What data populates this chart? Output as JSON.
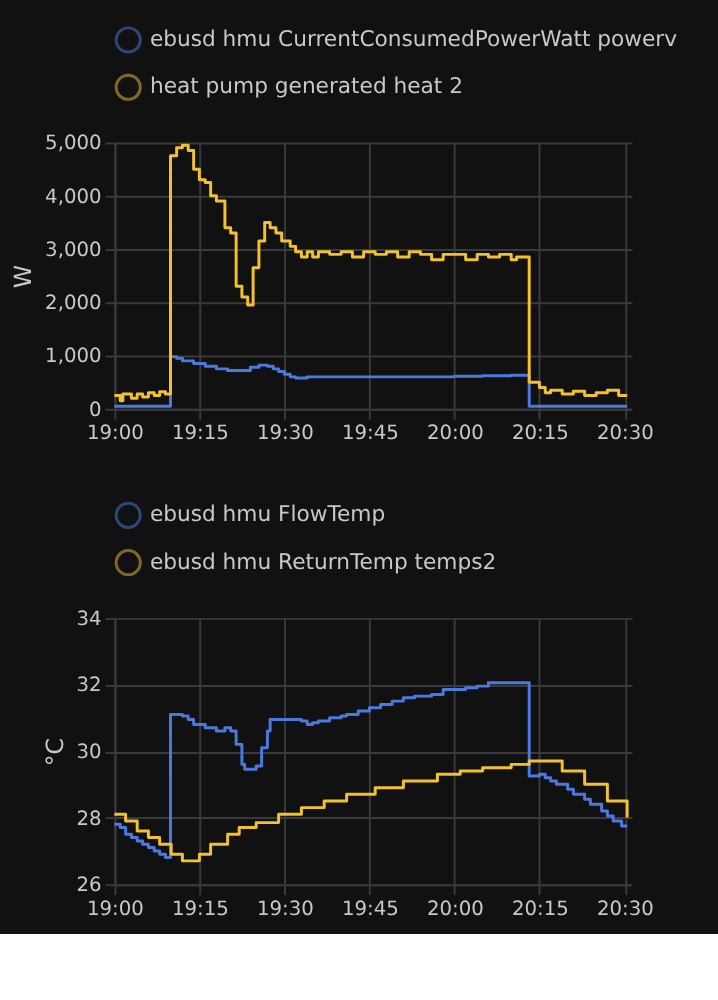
{
  "chart_data": [
    {
      "type": "step",
      "ylabel": "W",
      "xlim": [
        19,
        20.52
      ],
      "ylim": [
        0,
        5000
      ],
      "xticks": [
        {
          "value": 19,
          "label": "19:00"
        },
        {
          "value": 19.25,
          "label": "19:15"
        },
        {
          "value": 19.5,
          "label": "19:30"
        },
        {
          "value": 19.75,
          "label": "19:45"
        },
        {
          "value": 20,
          "label": "20:00"
        },
        {
          "value": 20.25,
          "label": "20:15"
        },
        {
          "value": 20.5,
          "label": "20:30"
        }
      ],
      "yticks": [
        0,
        {
          "value": 1000,
          "label": "1,000"
        },
        {
          "value": 2000,
          "label": "2,000"
        },
        {
          "value": 3000,
          "label": "3,000"
        },
        {
          "value": 4000,
          "label": "4,000"
        },
        {
          "value": 5000,
          "label": "5,000"
        }
      ],
      "grid": true,
      "legend": "top",
      "marker": "none",
      "series": [
        {
          "name": "ebusd hmu CurrentConsumedPowerWatt powerv",
          "color": "#4a7ae0",
          "x": [
            19,
            19.165,
            19.183,
            19.2,
            19.233,
            19.267,
            19.3,
            19.333,
            19.367,
            19.4,
            19.425,
            19.45,
            19.467,
            19.483,
            19.5,
            19.517,
            19.533,
            19.567,
            19.667,
            19.833,
            20.0,
            20.083,
            20.167,
            20.22,
            20.508
          ],
          "values": [
            50,
            980,
            950,
            900,
            850,
            800,
            750,
            720,
            720,
            780,
            820,
            800,
            750,
            700,
            650,
            600,
            580,
            600,
            600,
            600,
            610,
            620,
            630,
            50,
            50
          ]
        },
        {
          "name": "heat pump generated heat 2",
          "color": "#f2c12e",
          "x": [
            19,
            19.017,
            19.025,
            19.05,
            19.067,
            19.083,
            19.1,
            19.117,
            19.133,
            19.15,
            19.165,
            19.183,
            19.2,
            19.217,
            19.233,
            19.25,
            19.267,
            19.283,
            19.3,
            19.325,
            19.342,
            19.358,
            19.375,
            19.392,
            19.408,
            19.425,
            19.442,
            19.458,
            19.475,
            19.492,
            19.517,
            19.533,
            19.55,
            19.567,
            19.583,
            19.6,
            19.633,
            19.667,
            19.7,
            19.733,
            19.767,
            19.8,
            19.833,
            19.867,
            19.9,
            19.933,
            19.967,
            20.0,
            20.033,
            20.067,
            20.1,
            20.133,
            20.167,
            20.183,
            20.22,
            20.25,
            20.267,
            20.283,
            20.317,
            20.35,
            20.383,
            20.417,
            20.45,
            20.483,
            20.508
          ],
          "values": [
            250,
            150,
            280,
            200,
            280,
            220,
            300,
            250,
            320,
            280,
            4750,
            4900,
            4950,
            4850,
            4500,
            4300,
            4250,
            4000,
            3900,
            3400,
            3300,
            2300,
            2100,
            1950,
            2650,
            3150,
            3500,
            3400,
            3300,
            3150,
            3050,
            2950,
            2850,
            2950,
            2850,
            2950,
            2900,
            2950,
            2850,
            2950,
            2900,
            2950,
            2850,
            2950,
            2900,
            2800,
            2900,
            2900,
            2800,
            2900,
            2850,
            2900,
            2800,
            2850,
            500,
            400,
            300,
            350,
            280,
            330,
            250,
            300,
            350,
            250,
            250
          ]
        }
      ]
    },
    {
      "type": "step",
      "ylabel": "°C",
      "xlim": [
        19,
        20.52
      ],
      "ylim": [
        26,
        34
      ],
      "xticks": [
        {
          "value": 19,
          "label": "19:00"
        },
        {
          "value": 19.25,
          "label": "19:15"
        },
        {
          "value": 19.5,
          "label": "19:30"
        },
        {
          "value": 19.75,
          "label": "19:45"
        },
        {
          "value": 20,
          "label": "20:00"
        },
        {
          "value": 20.25,
          "label": "20:15"
        },
        {
          "value": 20.5,
          "label": "20:30"
        }
      ],
      "yticks": [
        26,
        28,
        30,
        32,
        34
      ],
      "grid": true,
      "legend": "top",
      "marker": "none",
      "series": [
        {
          "name": "ebusd hmu FlowTemp",
          "color": "#4a7ae0",
          "x": [
            19,
            19.017,
            19.033,
            19.05,
            19.067,
            19.083,
            19.1,
            19.117,
            19.133,
            19.15,
            19.165,
            19.2,
            19.217,
            19.233,
            19.267,
            19.3,
            19.325,
            19.342,
            19.358,
            19.375,
            19.383,
            19.417,
            19.433,
            19.45,
            19.458,
            19.55,
            19.567,
            19.583,
            19.6,
            19.633,
            19.667,
            19.683,
            19.717,
            19.75,
            19.783,
            19.817,
            19.85,
            19.883,
            19.933,
            19.967,
            20.033,
            20.067,
            20.1,
            20.22,
            20.25,
            20.267,
            20.283,
            20.3,
            20.333,
            20.35,
            20.383,
            20.4,
            20.433,
            20.45,
            20.467,
            20.492,
            20.508
          ],
          "values": [
            27.8,
            27.7,
            27.5,
            27.4,
            27.3,
            27.2,
            27.1,
            27.0,
            26.9,
            26.8,
            31.1,
            31.05,
            30.95,
            30.8,
            30.7,
            30.6,
            30.7,
            30.6,
            30.2,
            29.6,
            29.45,
            29.55,
            30.1,
            30.6,
            30.95,
            30.9,
            30.8,
            30.85,
            30.9,
            31.0,
            31.05,
            31.1,
            31.2,
            31.3,
            31.4,
            31.5,
            31.6,
            31.65,
            31.7,
            31.85,
            31.9,
            31.95,
            32.05,
            29.25,
            29.3,
            29.2,
            29.1,
            29.0,
            28.85,
            28.7,
            28.55,
            28.4,
            28.2,
            28.05,
            27.9,
            27.75,
            27.75
          ]
        },
        {
          "name": "ebusd hmu ReturnTemp temps2",
          "color": "#f2c12e",
          "x": [
            19,
            19.033,
            19.067,
            19.1,
            19.133,
            19.167,
            19.2,
            19.25,
            19.283,
            19.333,
            19.367,
            19.417,
            19.483,
            19.55,
            19.617,
            19.683,
            19.767,
            19.85,
            19.95,
            20.017,
            20.083,
            20.167,
            20.22,
            20.283,
            20.317,
            20.383,
            20.45,
            20.508
          ],
          "values": [
            28.1,
            27.9,
            27.6,
            27.4,
            27.2,
            26.9,
            26.7,
            26.9,
            27.2,
            27.5,
            27.7,
            27.85,
            28.1,
            28.3,
            28.5,
            28.7,
            28.9,
            29.1,
            29.3,
            29.4,
            29.5,
            29.6,
            29.7,
            29.7,
            29.4,
            29.0,
            28.5,
            28.0
          ]
        }
      ]
    }
  ]
}
